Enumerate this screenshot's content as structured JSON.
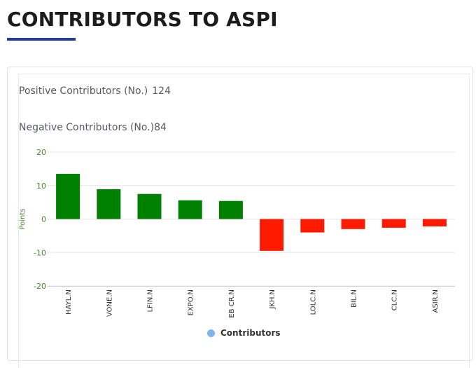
{
  "page": {
    "title": "CONTRIBUTORS TO ASPI"
  },
  "stats": {
    "positive_label": "Positive Contributors (No.)",
    "positive_value": "124",
    "negative_label": "Negative Contributors (No.)",
    "negative_value": "84"
  },
  "colors": {
    "positive": "#008000",
    "negative": "#ff1a00",
    "axis_label": "#4a8a2a",
    "underline": "#243b8f",
    "legend_dot": "#7cb5ec"
  },
  "legend": {
    "label": "Contributors"
  },
  "chart_data": {
    "type": "bar",
    "title": "",
    "xlabel": "",
    "ylabel": "Points",
    "ylim": [
      -20,
      20
    ],
    "yticks": [
      20,
      10,
      0,
      -10,
      -20
    ],
    "ytick_labels": [
      "20",
      "10",
      "0",
      "-10",
      "-20"
    ],
    "categories": [
      "HAYL.N",
      "VONE.N",
      "LFIN.N",
      "EXPO.N",
      "EB CR.N",
      "JKH.N",
      "LOLC.N",
      "BIL.N",
      "CLC.N",
      "ASIR.N"
    ],
    "series": [
      {
        "name": "Contributors",
        "values": [
          13.5,
          8.9,
          7.5,
          5.6,
          5.4,
          -9.5,
          -4.0,
          -3.0,
          -2.6,
          -2.2
        ]
      }
    ],
    "legend_position": "bottom-center",
    "grid": true
  }
}
